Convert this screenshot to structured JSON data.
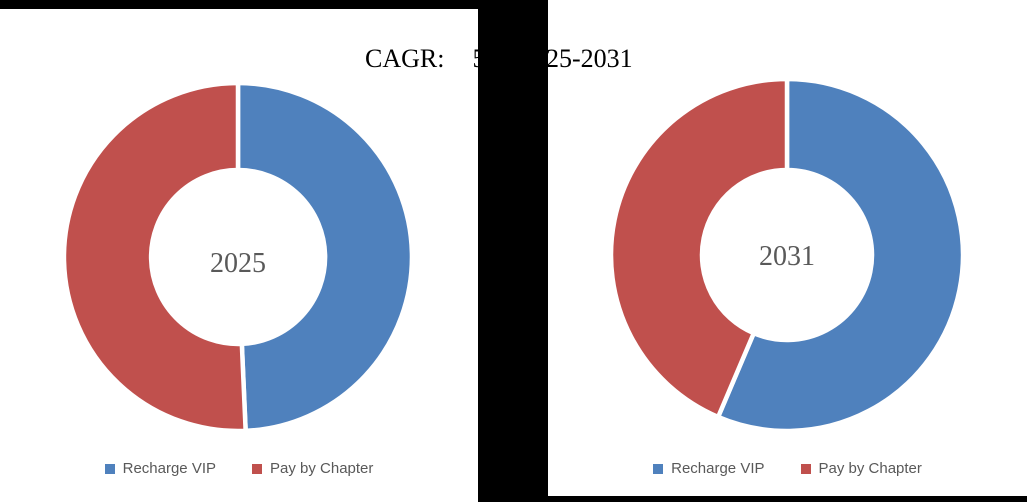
{
  "header": {
    "cagr_label": "CAGR:",
    "cagr_value_visible": "5",
    "period_visible": "25-2031"
  },
  "colors": {
    "recharge_vip_blue": "#4F81BD",
    "pay_by_chapter_red": "#C0504D",
    "text_gray": "#595959",
    "title_black": "#000000",
    "redaction_black": "#000000",
    "panel_white": "#ffffff"
  },
  "chart_data": [
    {
      "type": "pie",
      "donut": true,
      "center_label": "2025",
      "labels": [
        "Recharge VIP",
        "Pay by Chapter"
      ],
      "values": [
        49.3,
        50.7
      ],
      "colors": [
        "#4F81BD",
        "#C0504D"
      ],
      "start_angle_deg": 0,
      "legend_position": "bottom"
    },
    {
      "type": "pie",
      "donut": true,
      "center_label": "2031",
      "labels": [
        "Recharge VIP",
        "Pay by Chapter"
      ],
      "values": [
        56.4,
        43.6
      ],
      "colors": [
        "#4F81BD",
        "#C0504D"
      ],
      "start_angle_deg": 0,
      "legend_position": "bottom"
    }
  ]
}
